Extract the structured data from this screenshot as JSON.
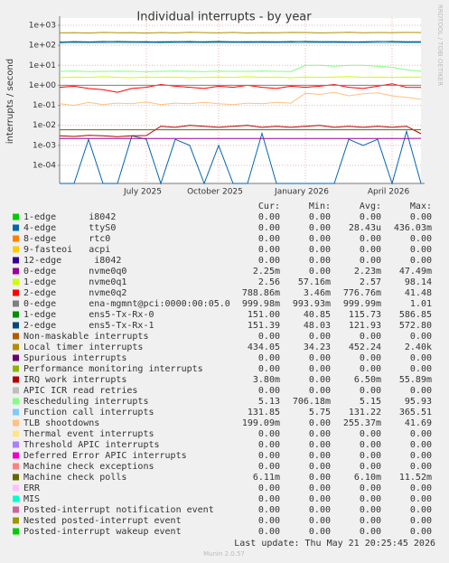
{
  "chart_data": {
    "type": "line",
    "title": "Individual interrupts - by year",
    "y_label": "interrupts / second",
    "side_note": "RRDTOOL / TOBI OETIKER",
    "log_y": true,
    "grid": true,
    "ylim": [
      1.25e-05,
      2300
    ],
    "yticks": [
      {
        "value": 1000,
        "label": "1e+03"
      },
      {
        "value": 100,
        "label": "1e+02"
      },
      {
        "value": 10,
        "label": "1e+01"
      },
      {
        "value": 1,
        "label": "1e+00"
      },
      {
        "value": 0.1,
        "label": "1e-01"
      },
      {
        "value": 0.01,
        "label": "1e-02"
      },
      {
        "value": 0.001,
        "label": "1e-03"
      },
      {
        "value": 0.0001,
        "label": "1e-04"
      }
    ],
    "categories": [
      null,
      null,
      null,
      null,
      null,
      null,
      "July 2025",
      null,
      null,
      null,
      null,
      "October 2025",
      null,
      null,
      null,
      null,
      null,
      "January 2026",
      null,
      null,
      null,
      null,
      null,
      "April 2026",
      null,
      null
    ],
    "series": [
      {
        "name": "1-edge      i8042",
        "color": "#00cc00"
      },
      {
        "name": "4-edge      ttyS0",
        "color": "#0066b3",
        "values": [
          0,
          0,
          0.002,
          0,
          0,
          0.003,
          0.002,
          0,
          0.002,
          0.001,
          0,
          0.001,
          0,
          0,
          0.004,
          0,
          0,
          0,
          0,
          0,
          0.002,
          0.001,
          0.002,
          0,
          0.005,
          0
        ]
      },
      {
        "name": "8-edge      rtc0",
        "color": "#ff8000"
      },
      {
        "name": "9-fasteoi   acpi",
        "color": "#ffcc00"
      },
      {
        "name": "12-edge      i8042",
        "color": "#330099"
      },
      {
        "name": "0-edge      nvme0q0",
        "color": "#990099",
        "values": [
          0.0022,
          0.0022,
          0.0022,
          0.0022,
          0.0022,
          0.0022,
          0.0022,
          0.0022,
          0.0022,
          0.0022,
          0.0022,
          0.0022,
          0.0022,
          0.0022,
          0.0022,
          0.0022,
          0.0022,
          0.0022,
          0.0022,
          0.0022,
          0.0022,
          0.0022,
          0.0022,
          0.0022,
          0.0022,
          0.00225
        ]
      },
      {
        "name": "1-edge      nvme0q1",
        "color": "#ccff00",
        "values": [
          2.4,
          2.6,
          2.5,
          2.7,
          2.5,
          2.4,
          2.6,
          2.5,
          2.6,
          2.4,
          2.5,
          2.6,
          2.5,
          2.7,
          2.5,
          2.6,
          2.4,
          2.6,
          2.5,
          2.6,
          2.7,
          2.5,
          2.6,
          2.5,
          2.6,
          2.56
        ]
      },
      {
        "name": "2-edge      nvme0q2",
        "color": "#ff0000",
        "values": [
          0.8,
          0.9,
          0.7,
          0.6,
          0.45,
          0.7,
          0.8,
          1.1,
          0.9,
          0.8,
          0.7,
          0.9,
          0.8,
          1.0,
          0.8,
          0.7,
          0.9,
          0.8,
          0.9,
          1.1,
          0.8,
          0.7,
          0.9,
          1.2,
          0.8,
          0.79
        ]
      },
      {
        "name": "0-edge      ena-mgmnt@pci:0000:00:05.0",
        "color": "#808080",
        "values": [
          1.0,
          1.0,
          1.0,
          1.0,
          1.0,
          1.0,
          1.0,
          1.0,
          1.0,
          1.0,
          1.0,
          1.0,
          1.0,
          1.0,
          1.0,
          1.0,
          1.0,
          1.0,
          1.0,
          1.0,
          1.0,
          1.0,
          1.0,
          1.0,
          1.0,
          1.0
        ]
      },
      {
        "name": "1-edge      ens5-Tx-Rx-0",
        "color": "#008f00",
        "values": [
          140,
          150,
          145,
          155,
          150,
          148,
          152,
          140,
          150,
          155,
          145,
          150,
          148,
          152,
          150,
          146,
          155,
          150,
          148,
          152,
          150,
          145,
          155,
          150,
          148,
          151
        ]
      },
      {
        "name": "2-edge      ens5-Tx-Rx-1",
        "color": "#00487d",
        "values": [
          145,
          152,
          148,
          150,
          155,
          150,
          146,
          150,
          152,
          148,
          150,
          155,
          150,
          146,
          152,
          150,
          148,
          155,
          152,
          150,
          146,
          150,
          152,
          155,
          150,
          151
        ]
      },
      {
        "name": "Non-maskable interrupts",
        "color": "#b35a00"
      },
      {
        "name": "Local timer interrupts",
        "color": "#b38f00",
        "values": [
          420,
          430,
          415,
          440,
          425,
          430,
          410,
          435,
          420,
          445,
          430,
          420,
          440,
          415,
          430,
          425,
          440,
          435,
          420,
          430,
          445,
          425,
          435,
          430,
          440,
          434
        ]
      },
      {
        "name": "Spurious interrupts",
        "color": "#6b006b"
      },
      {
        "name": "Performance monitoring interrupts",
        "color": "#8fb300"
      },
      {
        "name": "IRQ work interrupts",
        "color": "#b30000",
        "values": [
          0.003,
          0.0028,
          0.0032,
          0.003,
          0.0027,
          0.003,
          0.0031,
          0.009,
          0.008,
          0.01,
          0.009,
          0.008,
          0.009,
          0.01,
          0.008,
          0.009,
          0.008,
          0.009,
          0.01,
          0.008,
          0.009,
          0.008,
          0.009,
          0.008,
          0.009,
          0.0038
        ]
      },
      {
        "name": "APIC ICR read retries",
        "color": "#bebebe"
      },
      {
        "name": "Rescheduling interrupts",
        "color": "#80ff80",
        "values": [
          5,
          5.2,
          4.9,
          5,
          5.1,
          5,
          4.8,
          5,
          5.2,
          5,
          4.9,
          5.1,
          5,
          5,
          5.2,
          5,
          4.9,
          10,
          10,
          9,
          10,
          10,
          9,
          8,
          6,
          5.13
        ]
      },
      {
        "name": "Function call interrupts",
        "color": "#80c9ff",
        "values": [
          125,
          130,
          128,
          132,
          130,
          127,
          131,
          129,
          133,
          130,
          128,
          131,
          130,
          129,
          132,
          130,
          128,
          131,
          133,
          130,
          129,
          131,
          130,
          128,
          132,
          131.85
        ]
      },
      {
        "name": "TLB shootdowns",
        "color": "#ffc080",
        "values": [
          0.12,
          0.1,
          0.14,
          0.11,
          0.13,
          0.12,
          0.15,
          0.11,
          0.13,
          0.12,
          0.14,
          0.12,
          0.11,
          0.13,
          0.12,
          0.14,
          0.13,
          0.4,
          0.35,
          0.45,
          0.3,
          0.38,
          0.42,
          0.3,
          0.25,
          0.2
        ]
      },
      {
        "name": "Thermal event interrupts",
        "color": "#ffe680"
      },
      {
        "name": "Threshold APIC interrupts",
        "color": "#aa80ff"
      },
      {
        "name": "Deferred Error APIC interrupts",
        "color": "#ee00cc"
      },
      {
        "name": "Machine check exceptions",
        "color": "#ff8080"
      },
      {
        "name": "Machine check polls",
        "color": "#666600",
        "values": [
          0.006,
          0.006,
          0.006,
          0.006,
          0.006,
          0.006,
          0.006,
          0.006,
          0.006,
          0.006,
          0.006,
          0.006,
          0.006,
          0.006,
          0.006,
          0.006,
          0.006,
          0.006,
          0.006,
          0.006,
          0.006,
          0.006,
          0.006,
          0.006,
          0.006,
          0.006
        ]
      },
      {
        "name": "ERR",
        "color": "#ffbfff"
      },
      {
        "name": "MIS",
        "color": "#00ffcc"
      },
      {
        "name": "Posted-interrupt notification event",
        "color": "#cc6699"
      },
      {
        "name": "Nested posted-interrupt event",
        "color": "#999900"
      },
      {
        "name": "Posted-interrupt wakeup event",
        "color": "#00cc00"
      }
    ],
    "table": {
      "columns": [
        "Cur:",
        "Min:",
        "Avg:",
        "Max:"
      ],
      "rows": [
        [
          "0.00",
          "0.00",
          "0.00",
          "0.00"
        ],
        [
          "0.00",
          "0.00",
          "28.43u",
          "436.03m"
        ],
        [
          "0.00",
          "0.00",
          "0.00",
          "0.00"
        ],
        [
          "0.00",
          "0.00",
          "0.00",
          "0.00"
        ],
        [
          "0.00",
          "0.00",
          "0.00",
          "0.00"
        ],
        [
          "2.25m",
          "0.00",
          "2.23m",
          "47.49m"
        ],
        [
          "2.56",
          "57.16m",
          "2.57",
          "98.14"
        ],
        [
          "788.86m",
          "3.46m",
          "776.76m",
          "41.48"
        ],
        [
          "999.98m",
          "993.93m",
          "999.99m",
          "1.01"
        ],
        [
          "151.00",
          "40.85",
          "115.73",
          "586.85"
        ],
        [
          "151.39",
          "48.03",
          "121.93",
          "572.80"
        ],
        [
          "0.00",
          "0.00",
          "0.00",
          "0.00"
        ],
        [
          "434.05",
          "34.23",
          "452.24",
          "2.40k"
        ],
        [
          "0.00",
          "0.00",
          "0.00",
          "0.00"
        ],
        [
          "0.00",
          "0.00",
          "0.00",
          "0.00"
        ],
        [
          "3.80m",
          "0.00",
          "6.50m",
          "55.89m"
        ],
        [
          "0.00",
          "0.00",
          "0.00",
          "0.00"
        ],
        [
          "5.13",
          "706.18m",
          "5.15",
          "95.93"
        ],
        [
          "131.85",
          "5.75",
          "131.22",
          "365.51"
        ],
        [
          "199.09m",
          "0.00",
          "255.37m",
          "41.69"
        ],
        [
          "0.00",
          "0.00",
          "0.00",
          "0.00"
        ],
        [
          "0.00",
          "0.00",
          "0.00",
          "0.00"
        ],
        [
          "0.00",
          "0.00",
          "0.00",
          "0.00"
        ],
        [
          "0.00",
          "0.00",
          "0.00",
          "0.00"
        ],
        [
          "6.11m",
          "0.00",
          "6.10m",
          "11.52m"
        ],
        [
          "0.00",
          "0.00",
          "0.00",
          "0.00"
        ],
        [
          "0.00",
          "0.00",
          "0.00",
          "0.00"
        ],
        [
          "0.00",
          "0.00",
          "0.00",
          "0.00"
        ],
        [
          "0.00",
          "0.00",
          "0.00",
          "0.00"
        ],
        [
          "0.00",
          "0.00",
          "0.00",
          "0.00"
        ]
      ]
    },
    "last_update": "Last update: Thu May 21 20:25:45 2026",
    "footer": "Munin 2.0.57"
  }
}
